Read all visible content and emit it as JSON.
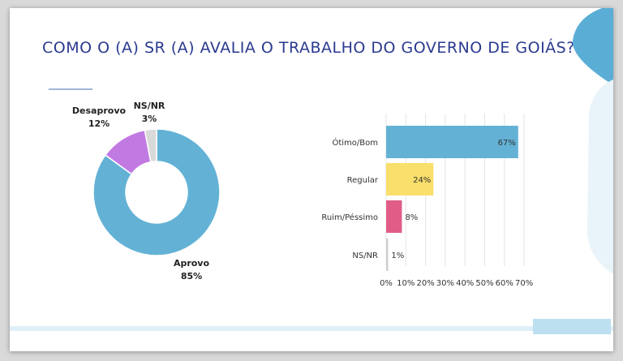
{
  "title": "COMO O (A) SR (A) AVALIA O TRABALHO DO GOVERNO DE GOIÁS?",
  "colors": {
    "title": "#2b3a8f",
    "aprovo": "#63b2d6",
    "desaprovo": "#c27ae3",
    "nsnr_pie": "#d9d9d9",
    "otimo": "#63b2d6",
    "regular": "#f9df6b",
    "ruim": "#e05d87",
    "nsnr_bar": "#cfcfcf",
    "deco": "#5aaed6"
  },
  "chart_data": [
    {
      "type": "pie",
      "donut": true,
      "slices": [
        {
          "label": "Aprovo",
          "value": 85,
          "display": "85%"
        },
        {
          "label": "Desaprovo",
          "value": 12,
          "display": "12%"
        },
        {
          "label": "NS/NR",
          "value": 3,
          "display": "3%"
        }
      ]
    },
    {
      "type": "bar",
      "orientation": "horizontal",
      "categories": [
        "Ótimo/Bom",
        "Regular",
        "Ruim/Péssimo",
        "NS/NR"
      ],
      "values": [
        67,
        24,
        8,
        1
      ],
      "value_labels": [
        "67%",
        "24%",
        "8%",
        "1%"
      ],
      "xlim": [
        0,
        70
      ],
      "xticks": [
        "0%",
        "10%",
        "20%",
        "30%",
        "40%",
        "50%",
        "60%",
        "70%"
      ],
      "grid": true
    }
  ]
}
